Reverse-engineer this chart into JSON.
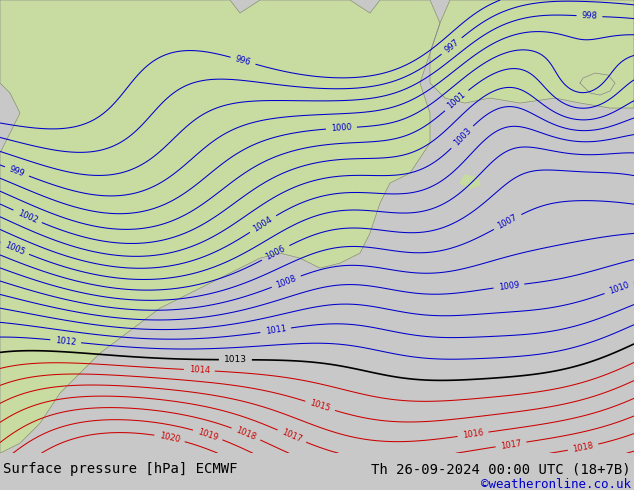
{
  "title_left": "Surface pressure [hPa] ECMWF",
  "title_right": "Th 26-09-2024 00:00 UTC (18+7B)",
  "copyright": "©weatheronline.co.uk",
  "bg_color": "#c8c8c8",
  "land_color": "#c8dba0",
  "sea_color": "#c0c0c0",
  "white_bar_color": "#ffffff",
  "blue_contour_color": "#0000cc",
  "red_contour_color": "#cc0000",
  "black_contour_color": "#000000",
  "gray_contour_color": "#888888",
  "font_color_left": "#000000",
  "font_color_right": "#000000",
  "font_color_copy": "#0000cc",
  "title_fontsize": 10,
  "copy_fontsize": 9,
  "figsize": [
    6.34,
    4.9
  ],
  "dpi": 100
}
